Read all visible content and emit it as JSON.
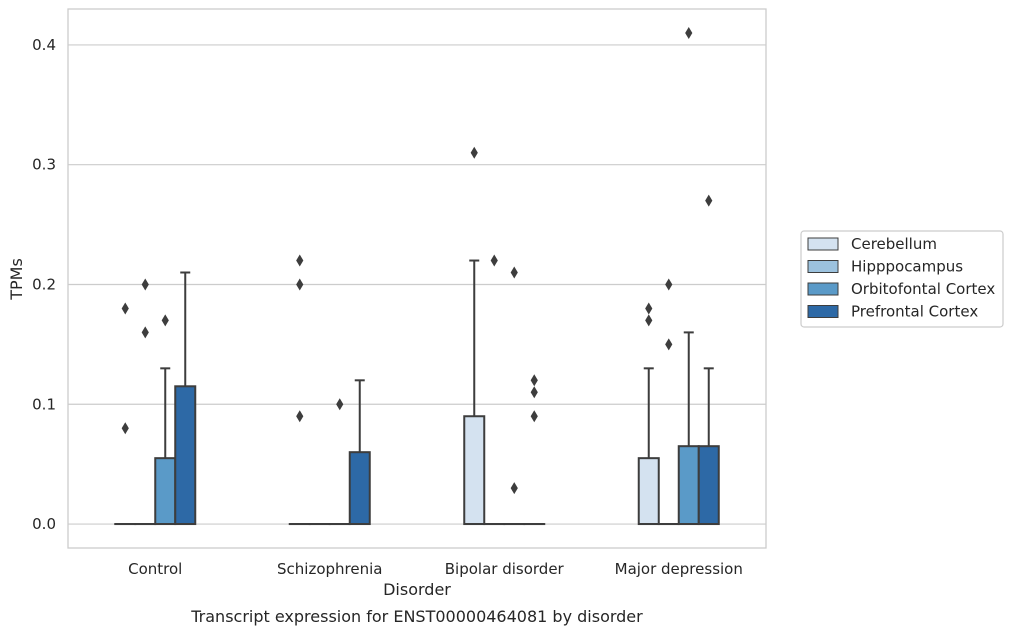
{
  "chart_data": {
    "type": "boxplot",
    "caption": "Transcript expression for ENST00000464081 by disorder",
    "xlabel": "Disorder",
    "ylabel": "TPMs",
    "ylim": [
      -0.02,
      0.43
    ],
    "yticks": [
      "0.0",
      "0.1",
      "0.2",
      "0.3",
      "0.4"
    ],
    "grid": "horizontal",
    "legend_position": "right",
    "categories": [
      "Control",
      "Schizophrenia",
      "Bipolar disorder",
      "Major depression"
    ],
    "series": [
      {
        "name": "Cerebellum",
        "color": "#d4e2f0",
        "boxes": [
          {
            "q1": 0,
            "median": 0,
            "q3": 0,
            "whisker_low": 0,
            "whisker_high": 0,
            "outliers": [
              0.08,
              0.18
            ]
          },
          {
            "q1": 0,
            "median": 0,
            "q3": 0,
            "whisker_low": 0,
            "whisker_high": 0,
            "outliers": [
              0.09,
              0.2,
              0.22
            ]
          },
          {
            "q1": 0,
            "median": 0,
            "q3": 0.09,
            "whisker_low": 0,
            "whisker_high": 0.22,
            "outliers": [
              0.31
            ]
          },
          {
            "q1": 0,
            "median": 0,
            "q3": 0.055,
            "whisker_low": 0,
            "whisker_high": 0.13,
            "outliers": [
              0.17,
              0.18
            ]
          }
        ]
      },
      {
        "name": "Hipppocampus",
        "color": "#9cc2de",
        "boxes": [
          {
            "q1": 0,
            "median": 0,
            "q3": 0,
            "whisker_low": 0,
            "whisker_high": 0,
            "outliers": [
              0.16,
              0.2
            ]
          },
          {
            "q1": 0,
            "median": 0,
            "q3": 0,
            "whisker_low": 0,
            "whisker_high": 0,
            "outliers": []
          },
          {
            "q1": 0,
            "median": 0,
            "q3": 0,
            "whisker_low": 0,
            "whisker_high": 0,
            "outliers": [
              0.22
            ]
          },
          {
            "q1": 0,
            "median": 0,
            "q3": 0,
            "whisker_low": 0,
            "whisker_high": 0,
            "outliers": [
              0.15,
              0.2
            ]
          }
        ]
      },
      {
        "name": "Orbitofontal Cortex",
        "color": "#5a9ac8",
        "boxes": [
          {
            "q1": 0,
            "median": 0,
            "q3": 0.055,
            "whisker_low": 0,
            "whisker_high": 0.13,
            "outliers": [
              0.17
            ]
          },
          {
            "q1": 0,
            "median": 0,
            "q3": 0,
            "whisker_low": 0,
            "whisker_high": 0,
            "outliers": [
              0.1
            ]
          },
          {
            "q1": 0,
            "median": 0,
            "q3": 0,
            "whisker_low": 0,
            "whisker_high": 0,
            "outliers": [
              0.03,
              0.21
            ]
          },
          {
            "q1": 0,
            "median": 0,
            "q3": 0.065,
            "whisker_low": 0,
            "whisker_high": 0.16,
            "outliers": [
              0.41
            ]
          }
        ]
      },
      {
        "name": "Prefrontal Cortex",
        "color": "#2d69a6",
        "boxes": [
          {
            "q1": 0,
            "median": 0,
            "q3": 0.115,
            "whisker_low": 0,
            "whisker_high": 0.21,
            "outliers": []
          },
          {
            "q1": 0,
            "median": 0,
            "q3": 0.06,
            "whisker_low": 0,
            "whisker_high": 0.12,
            "outliers": []
          },
          {
            "q1": 0,
            "median": 0,
            "q3": 0,
            "whisker_low": 0,
            "whisker_high": 0,
            "outliers": [
              0.09,
              0.11,
              0.12
            ]
          },
          {
            "q1": 0,
            "median": 0,
            "q3": 0.065,
            "whisker_low": 0,
            "whisker_high": 0.13,
            "outliers": [
              0.27
            ]
          }
        ]
      }
    ]
  }
}
